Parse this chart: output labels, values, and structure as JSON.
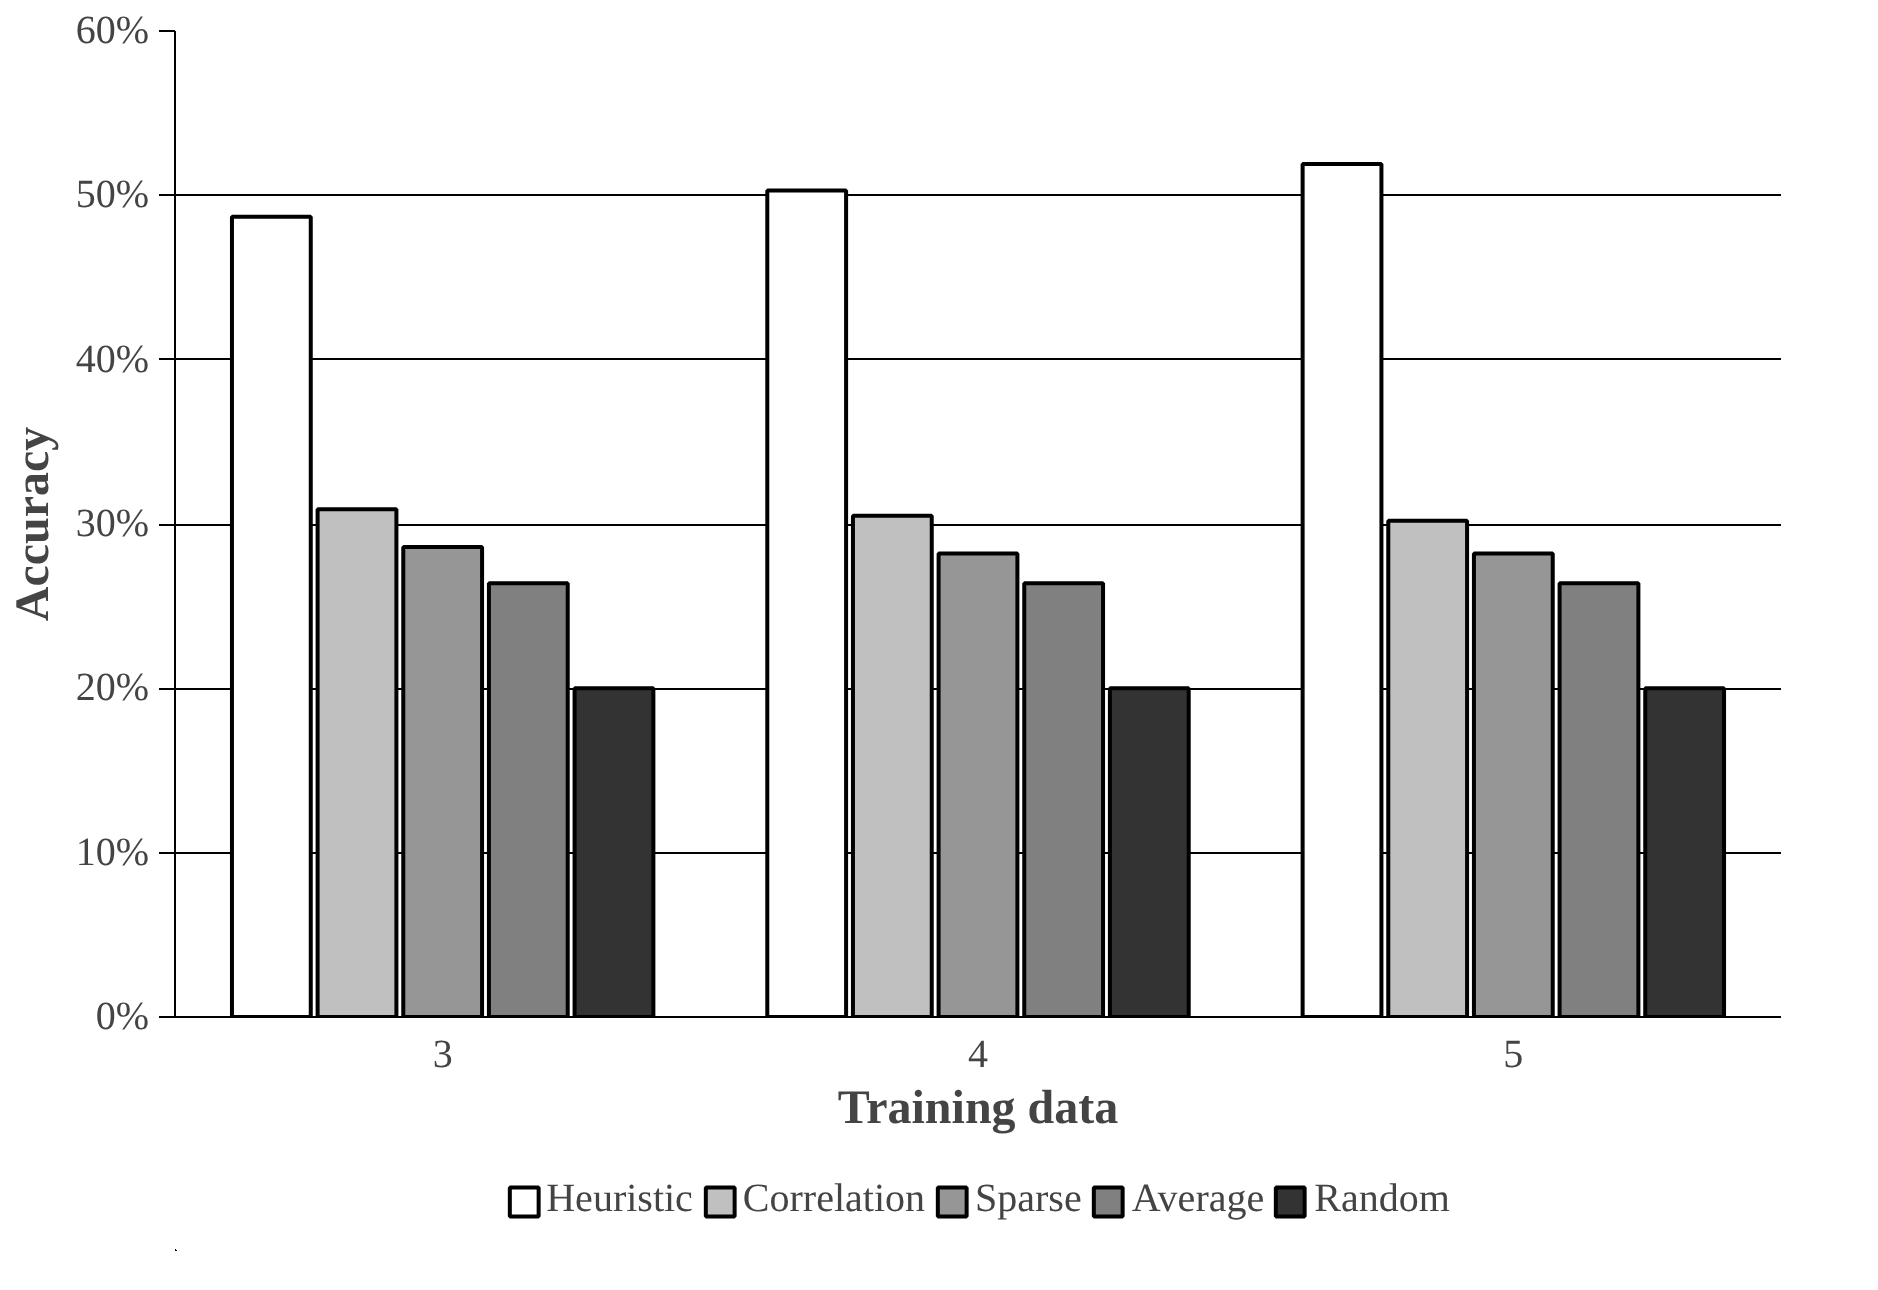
{
  "chart_data": {
    "type": "bar",
    "xlabel": "Training data",
    "ylabel": "Accuracy",
    "categories": [
      "3",
      "4",
      "5"
    ],
    "series": [
      {
        "name": "Heuristic",
        "color": "#ffffff",
        "values": [
          48.7,
          50.3,
          51.9
        ]
      },
      {
        "name": "Correlation",
        "color": "#c0c0c0",
        "values": [
          30.9,
          30.5,
          30.2
        ]
      },
      {
        "name": "Sparse",
        "color": "#969696",
        "values": [
          28.6,
          28.2,
          28.2
        ]
      },
      {
        "name": "Average",
        "color": "#808080",
        "values": [
          26.4,
          26.4,
          26.4
        ]
      },
      {
        "name": "Random",
        "color": "#333333",
        "values": [
          20.0,
          20.0,
          20.0
        ]
      }
    ],
    "ylim": [
      0,
      60
    ],
    "yticks": [
      {
        "value": 0,
        "label": "0%"
      },
      {
        "value": 10,
        "label": "10%"
      },
      {
        "value": 20,
        "label": "20%"
      },
      {
        "value": 30,
        "label": "30%"
      },
      {
        "value": 40,
        "label": "40%"
      },
      {
        "value": 50,
        "label": "50%"
      },
      {
        "value": 60,
        "label": "60%"
      }
    ],
    "grid": "y",
    "legend": "bottom"
  }
}
